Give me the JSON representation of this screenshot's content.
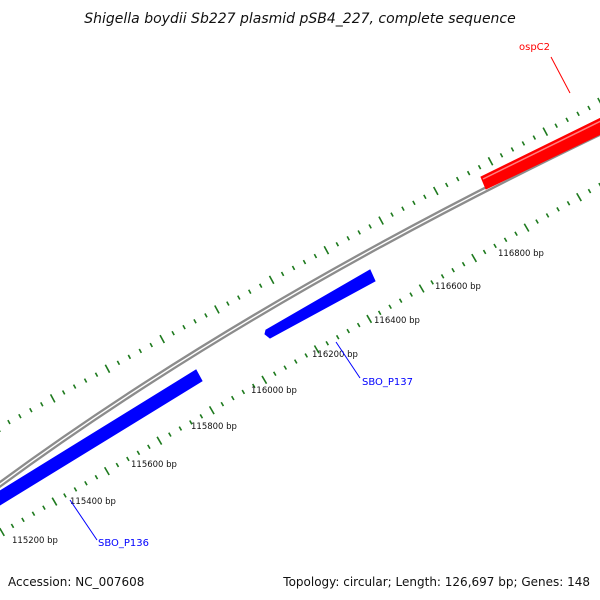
{
  "title": "Shigella boydii Sb227 plasmid pSB4_227, complete sequence",
  "footer": {
    "accession": "Accession: NC_007608",
    "summary": "Topology: circular; Length: 126,697 bp; Genes: 148"
  },
  "colors": {
    "backbone": "#8c8c8c",
    "tick": "#1e7a1e",
    "gene_forward": "#ff0000",
    "gene_reverse": "#0000ff"
  },
  "scale_labels": [
    {
      "bp": 115200,
      "text": "115200 bp"
    },
    {
      "bp": 115400,
      "text": "115400 bp"
    },
    {
      "bp": 115600,
      "text": "115600 bp"
    },
    {
      "bp": 115800,
      "text": "115800 bp"
    },
    {
      "bp": 116000,
      "text": "116000 bp"
    },
    {
      "bp": 116200,
      "text": "116200 bp"
    },
    {
      "bp": 116400,
      "text": "116400 bp"
    },
    {
      "bp": 116600,
      "text": "116600 bp"
    },
    {
      "bp": 116800,
      "text": "116800 bp"
    }
  ],
  "genes": [
    {
      "name": "SBO_P136",
      "strand": "reverse",
      "color_key": "gene_reverse"
    },
    {
      "name": "SBO_P137",
      "strand": "reverse",
      "color_key": "gene_reverse"
    },
    {
      "name": "ospC2",
      "strand": "forward",
      "color_key": "gene_forward"
    }
  ]
}
